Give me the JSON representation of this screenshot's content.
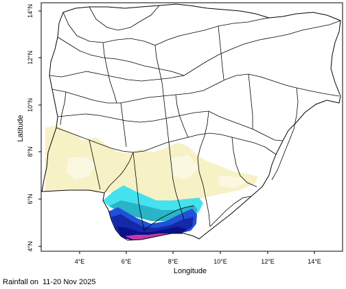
{
  "map": {
    "x_axis_title": "Longitude",
    "y_axis_title": "Latitude",
    "x_ticks": [
      "4°E",
      "6°E",
      "8°E",
      "10°E",
      "12°E",
      "14°E"
    ],
    "y_ticks": [
      "4°N",
      "6°N",
      "8°N",
      "10°N",
      "12°N",
      "14°N"
    ],
    "extent": {
      "lon": [
        2.5,
        15.0
      ],
      "lat": [
        3.8,
        14.3
      ]
    }
  },
  "caption": {
    "prefix": "Rainfall on",
    "period": "11-20 Nov 2025"
  },
  "rainfall_colors": {
    "very_light": "#fbf7d8",
    "light": "#f6f0c2",
    "cyan": "#3fe6f0",
    "teal": "#27b9c9",
    "blue": "#1f4fd9",
    "deep_blue": "#1428b0",
    "navy": "#0b0f8a",
    "magenta": "#c23aa8"
  }
}
